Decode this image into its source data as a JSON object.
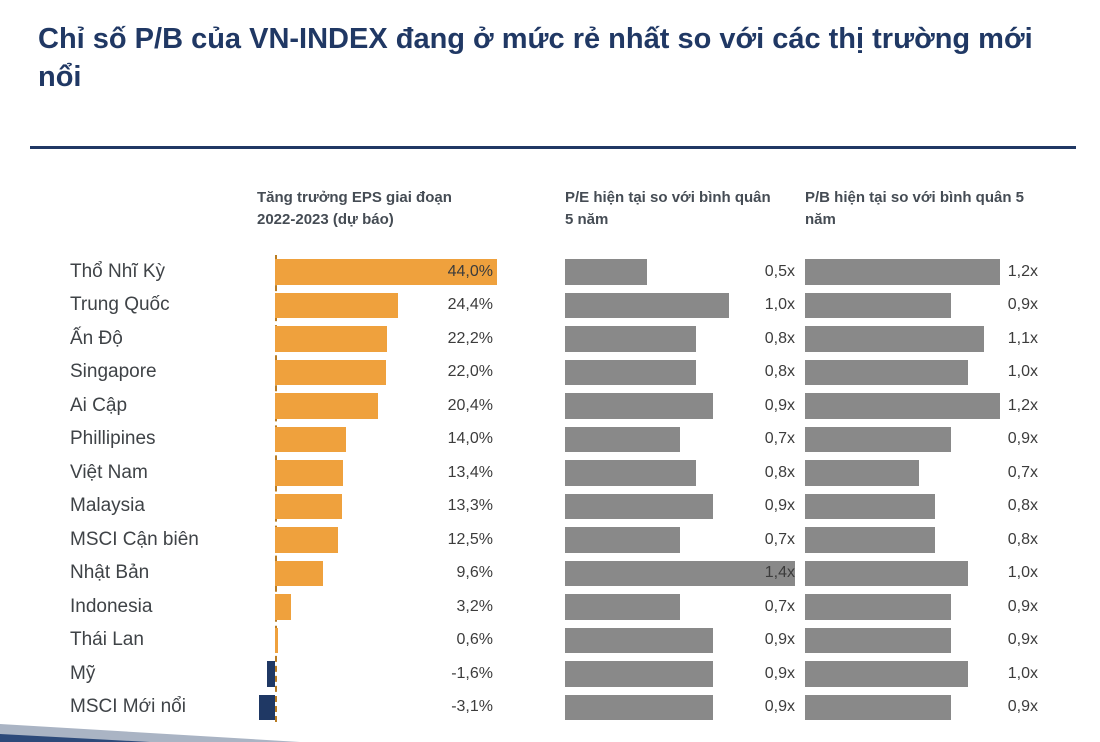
{
  "title": "Chỉ số P/B của VN-INDEX đang ở mức rẻ nhất so với các thị trường mới nổi",
  "columns": {
    "eps": "Tăng trưởng EPS giai đoạn 2022-2023 (dự báo)",
    "pe": "P/E hiện tại so với bình quân 5 năm",
    "pb": "P/B hiện tại so với bình quân 5 năm"
  },
  "colors": {
    "title_navy": "#203864",
    "bar_orange": "#efa13d",
    "bar_negative_navy": "#1f3864",
    "bar_gray": "#898989",
    "axis_dash_orange": "#b97c22"
  },
  "chart_data": {
    "type": "bar",
    "orientation": "horizontal",
    "grid": false,
    "legend": "none",
    "title": "Chỉ số P/B của VN-INDEX đang ở mức rẻ nhất so với các thị trường mới nổi",
    "categories": [
      "Thổ Nhĩ Kỳ",
      "Trung Quốc",
      "Ấn Độ",
      "Singapore",
      "Ai Cập",
      "Phillipines",
      "Việt Nam",
      "Malaysia",
      "MSCI Cận biên",
      "Nhật Bản",
      "Indonesia",
      "Thái Lan",
      "Mỹ",
      "MSCI Mới nổi"
    ],
    "series": [
      {
        "name": "Tăng trưởng EPS giai đoạn 2022-2023 (dự báo)",
        "unit": "%",
        "axis_range": [
          -5,
          45
        ],
        "values": [
          44.0,
          24.4,
          22.2,
          22.0,
          20.4,
          14.0,
          13.4,
          13.3,
          12.5,
          9.6,
          3.2,
          0.6,
          -1.6,
          -3.1
        ],
        "labels": [
          "44,0%",
          "24,4%",
          "22,2%",
          "22,0%",
          "20,4%",
          "14,0%",
          "13,4%",
          "13,3%",
          "12,5%",
          "9,6%",
          "3,2%",
          "0,6%",
          "-1,6%",
          "-3,1%"
        ]
      },
      {
        "name": "P/E hiện tại so với bình quân 5 năm",
        "unit": "x",
        "axis_range": [
          0,
          1.4
        ],
        "values": [
          0.5,
          1.0,
          0.8,
          0.8,
          0.9,
          0.7,
          0.8,
          0.9,
          0.7,
          1.4,
          0.7,
          0.9,
          0.9,
          0.9
        ],
        "labels": [
          "0,5x",
          "1,0x",
          "0,8x",
          "0,8x",
          "0,9x",
          "0,7x",
          "0,8x",
          "0,9x",
          "0,7x",
          "1,4x",
          "0,7x",
          "0,9x",
          "0,9x",
          "0,9x"
        ]
      },
      {
        "name": "P/B hiện tại so với bình quân 5 năm",
        "unit": "x",
        "axis_range": [
          0,
          1.45
        ],
        "values": [
          1.2,
          0.9,
          1.1,
          1.0,
          1.2,
          0.9,
          0.7,
          0.8,
          0.8,
          1.0,
          0.9,
          0.9,
          1.0,
          0.9
        ],
        "labels": [
          "1,2x",
          "0,9x",
          "1,1x",
          "1,0x",
          "1,2x",
          "0,9x",
          "0,7x",
          "0,8x",
          "0,8x",
          "1,0x",
          "0,9x",
          "0,9x",
          "1,0x",
          "0,9x"
        ]
      }
    ]
  }
}
